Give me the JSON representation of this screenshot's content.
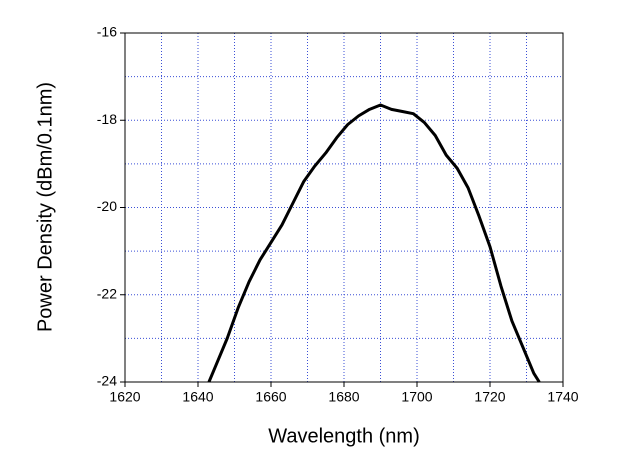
{
  "chart_data": {
    "type": "line",
    "x_label": "Wavelength (nm)",
    "y_label": "Power Density (dBm/0.1nm)",
    "xlim": [
      1620,
      1740
    ],
    "ylim": [
      -24,
      -16
    ],
    "xticks": [
      1620,
      1640,
      1660,
      1680,
      1700,
      1720,
      1740
    ],
    "yticks": [
      -24,
      -22,
      -20,
      -18,
      -16
    ],
    "xgrid": [
      1630,
      1640,
      1650,
      1660,
      1670,
      1680,
      1690,
      1700,
      1710,
      1720,
      1730
    ],
    "ygrid": [
      -23,
      -22,
      -21,
      -20,
      -19,
      -18,
      -17
    ],
    "grid_color": "#3a4fd6",
    "series": [
      {
        "color": "#000000",
        "x": [
          1643,
          1645,
          1648,
          1651,
          1654,
          1657,
          1660,
          1663,
          1666,
          1669,
          1672,
          1675,
          1678,
          1681,
          1684,
          1687,
          1690,
          1693,
          1696,
          1699,
          1702,
          1705,
          1708,
          1711,
          1714,
          1717,
          1720,
          1723,
          1726,
          1729,
          1732,
          1733.5
        ],
        "values": [
          -24,
          -23.6,
          -23.0,
          -22.3,
          -21.7,
          -21.2,
          -20.8,
          -20.4,
          -19.9,
          -19.4,
          -19.05,
          -18.75,
          -18.4,
          -18.1,
          -17.9,
          -17.75,
          -17.65,
          -17.75,
          -17.8,
          -17.85,
          -18.05,
          -18.35,
          -18.8,
          -19.1,
          -19.55,
          -20.2,
          -20.9,
          -21.8,
          -22.6,
          -23.2,
          -23.8,
          -24
        ]
      }
    ]
  }
}
